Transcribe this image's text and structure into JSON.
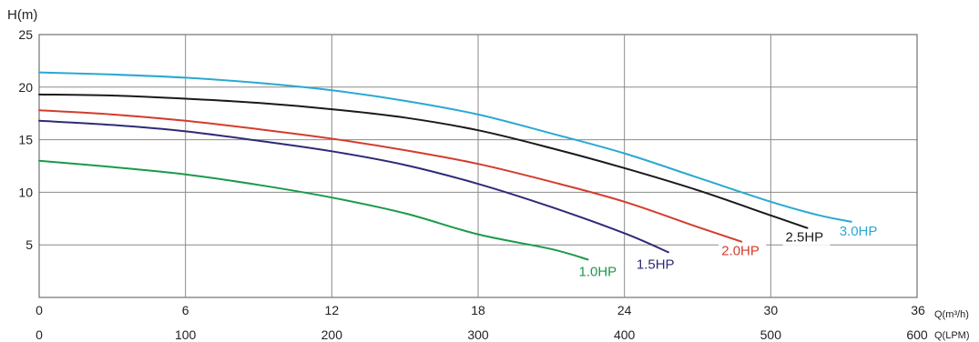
{
  "chart_data": {
    "type": "line",
    "ylabel": "H(m)",
    "x_unit_top": "Q(m³/h)",
    "x_unit_bottom": "Q(LPM)",
    "xlim": [
      0,
      36
    ],
    "ylim": [
      0,
      25
    ],
    "grid": true,
    "y_ticks": [
      "5",
      "10",
      "15",
      "20",
      "25"
    ],
    "x_ticks_top": [
      "0",
      "6",
      "12",
      "18",
      "24",
      "30",
      "36"
    ],
    "x_ticks_bottom": [
      "0",
      "100",
      "200",
      "300",
      "400",
      "500",
      "600"
    ],
    "series": [
      {
        "name": "1.0HP",
        "color": "#1a9a4a",
        "x": [
          0,
          3,
          6,
          9,
          12,
          15,
          18,
          21,
          22.5
        ],
        "y": [
          13,
          12.4,
          11.7,
          10.7,
          9.5,
          8,
          6,
          4.6,
          3.6
        ]
      },
      {
        "name": "1.5HP",
        "color": "#2e2a78",
        "x": [
          0,
          3,
          6,
          9,
          12,
          15,
          18,
          21,
          24,
          25.8
        ],
        "y": [
          16.8,
          16.4,
          15.8,
          14.9,
          13.9,
          12.6,
          10.8,
          8.6,
          6.1,
          4.3
        ]
      },
      {
        "name": "2.0HP",
        "color": "#d43c2c",
        "x": [
          0,
          3,
          6,
          9,
          12,
          15,
          18,
          21,
          24,
          27,
          28.8
        ],
        "y": [
          17.8,
          17.4,
          16.8,
          16,
          15.1,
          14,
          12.7,
          11,
          9.1,
          6.7,
          5.3
        ]
      },
      {
        "name": "2.5HP",
        "color": "#1a1a1a",
        "x": [
          0,
          3,
          6,
          9,
          12,
          15,
          18,
          21,
          24,
          27,
          30,
          31.5
        ],
        "y": [
          19.3,
          19.2,
          18.9,
          18.5,
          17.9,
          17.1,
          15.9,
          14.2,
          12.3,
          10.2,
          7.8,
          6.6
        ]
      },
      {
        "name": "3.0HP",
        "color": "#2aa8d2",
        "x": [
          0,
          3,
          6,
          9,
          12,
          15,
          18,
          21,
          24,
          27,
          30,
          32,
          33.3
        ],
        "y": [
          21.4,
          21.2,
          20.9,
          20.4,
          19.7,
          18.7,
          17.4,
          15.6,
          13.7,
          11.4,
          9.1,
          7.8,
          7.2
        ]
      }
    ]
  }
}
